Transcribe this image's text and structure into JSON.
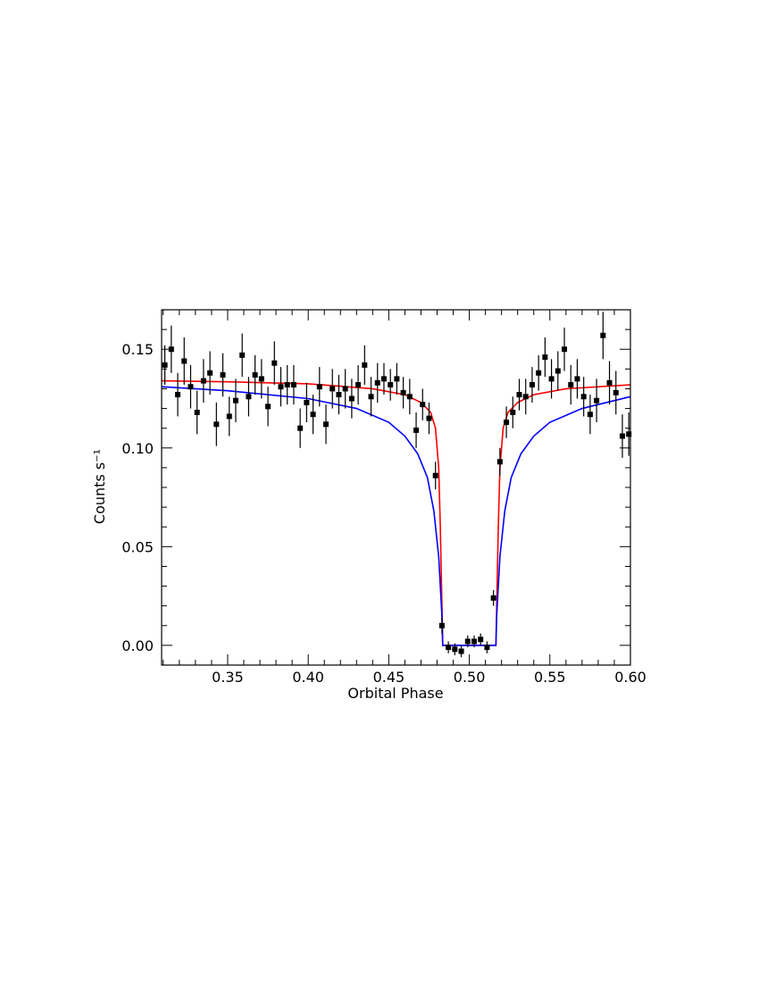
{
  "chart_data": {
    "type": "scatter",
    "xlabel": "Orbital Phase",
    "ylabel": "Counts s⁻¹",
    "xlim": [
      0.309,
      0.6
    ],
    "ylim": [
      -0.01,
      0.17
    ],
    "xticks": [
      0.35,
      {
        "value": 0.4,
        "label": "0.40"
      },
      0.45,
      {
        "value": 0.5,
        "label": "0.50"
      },
      0.55,
      {
        "value": 0.6,
        "label": "0.60"
      }
    ],
    "yticks": [
      {
        "value": 0,
        "label": "0.00"
      },
      0.05,
      {
        "value": 0.1,
        "label": "0.10"
      },
      0.15
    ],
    "xminorticks": [
      0.31,
      0.32,
      0.33,
      0.34,
      0.36,
      0.37,
      0.38,
      0.39,
      0.41,
      0.42,
      0.43,
      0.44,
      0.46,
      0.47,
      0.48,
      0.49,
      0.51,
      0.52,
      0.53,
      0.54,
      0.56,
      0.57,
      0.58,
      0.59
    ],
    "yminorticks": [
      -0.01,
      0.01,
      0.02,
      0.03,
      0.04,
      0.06,
      0.07,
      0.08,
      0.09,
      0.11,
      0.12,
      0.13,
      0.14,
      0.16
    ],
    "series": [
      {
        "type": "scatter",
        "color": "#000000",
        "x": [
          0.311,
          0.315,
          0.319,
          0.323,
          0.327,
          0.331,
          0.335,
          0.339,
          0.343,
          0.347,
          0.351,
          0.355,
          0.359,
          0.363,
          0.367,
          0.371,
          0.375,
          0.379,
          0.383,
          0.387,
          0.391,
          0.395,
          0.399,
          0.403,
          0.407,
          0.411,
          0.415,
          0.419,
          0.423,
          0.427,
          0.431,
          0.435,
          0.439,
          0.443,
          0.447,
          0.451,
          0.455,
          0.459,
          0.463,
          0.467,
          0.471,
          0.475,
          0.479,
          0.483,
          0.487,
          0.491,
          0.495,
          0.499,
          0.503,
          0.507,
          0.511,
          0.515,
          0.519,
          0.523,
          0.527,
          0.531,
          0.535,
          0.539,
          0.543,
          0.547,
          0.551,
          0.555,
          0.559,
          0.563,
          0.567,
          0.571,
          0.575,
          0.579,
          0.583,
          0.587,
          0.591,
          0.595,
          0.599
        ],
        "values": [
          0.142,
          0.15,
          0.127,
          0.144,
          0.131,
          0.118,
          0.134,
          0.138,
          0.112,
          0.137,
          0.116,
          0.124,
          0.147,
          0.126,
          0.137,
          0.135,
          0.121,
          0.143,
          0.131,
          0.132,
          0.132,
          0.11,
          0.123,
          0.117,
          0.131,
          0.112,
          0.13,
          0.127,
          0.13,
          0.125,
          0.132,
          0.142,
          0.126,
          0.133,
          0.135,
          0.132,
          0.135,
          0.128,
          0.126,
          0.109,
          0.122,
          0.115,
          0.086,
          0.01,
          -0.001,
          -0.002,
          -0.003,
          0.002,
          0.002,
          0.003,
          -0.001,
          0.024,
          0.093,
          0.113,
          0.118,
          0.127,
          0.126,
          0.132,
          0.138,
          0.146,
          0.135,
          0.139,
          0.15,
          0.132,
          0.135,
          0.126,
          0.117,
          0.124,
          0.157,
          0.133,
          0.128,
          0.106,
          0.107
        ],
        "errors": [
          0.01,
          0.012,
          0.011,
          0.012,
          0.011,
          0.011,
          0.011,
          0.011,
          0.011,
          0.011,
          0.01,
          0.011,
          0.011,
          0.01,
          0.01,
          0.01,
          0.01,
          0.011,
          0.01,
          0.01,
          0.01,
          0.01,
          0.01,
          0.01,
          0.01,
          0.01,
          0.01,
          0.01,
          0.01,
          0.01,
          0.01,
          0.01,
          0.01,
          0.01,
          0.008,
          0.008,
          0.008,
          0.008,
          0.009,
          0.009,
          0.008,
          0.008,
          0.007,
          0.004,
          0.003,
          0.003,
          0.003,
          0.003,
          0.003,
          0.003,
          0.003,
          0.004,
          0.007,
          0.008,
          0.008,
          0.008,
          0.009,
          0.009,
          0.009,
          0.01,
          0.01,
          0.01,
          0.011,
          0.01,
          0.01,
          0.01,
          0.01,
          0.011,
          0.012,
          0.011,
          0.011,
          0.011,
          0.011
        ]
      },
      {
        "type": "line",
        "color": "#ff0000",
        "x": [
          0.309,
          0.35,
          0.4,
          0.44,
          0.46,
          0.47,
          0.476,
          0.479,
          0.481,
          0.482,
          0.483,
          0.4835,
          0.5165,
          0.517,
          0.518,
          0.519,
          0.521,
          0.524,
          0.53,
          0.54,
          0.56,
          0.6
        ],
        "values": [
          0.134,
          0.1335,
          0.1325,
          0.13,
          0.127,
          0.123,
          0.118,
          0.11,
          0.09,
          0.06,
          0.02,
          0,
          0,
          0.02,
          0.06,
          0.09,
          0.11,
          0.118,
          0.123,
          0.127,
          0.13,
          0.132
        ]
      },
      {
        "type": "line",
        "color": "#0000ff",
        "x": [
          0.309,
          0.35,
          0.4,
          0.43,
          0.45,
          0.46,
          0.468,
          0.474,
          0.478,
          0.481,
          0.483,
          0.4835,
          0.5165,
          0.517,
          0.519,
          0.522,
          0.526,
          0.532,
          0.54,
          0.55,
          0.57,
          0.6
        ],
        "values": [
          0.131,
          0.129,
          0.125,
          0.12,
          0.113,
          0.106,
          0.097,
          0.085,
          0.068,
          0.045,
          0.015,
          0,
          0,
          0.015,
          0.045,
          0.068,
          0.085,
          0.097,
          0.106,
          0.113,
          0.12,
          0.126
        ]
      }
    ]
  }
}
